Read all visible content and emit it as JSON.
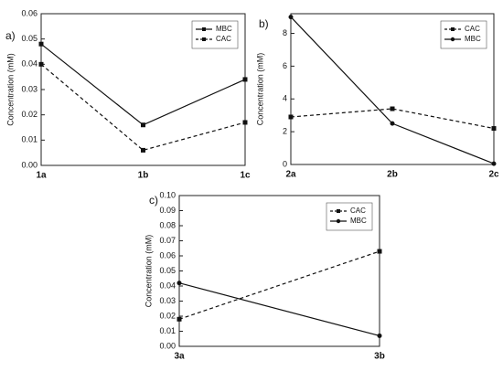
{
  "chart_data": [
    {
      "type": "line",
      "panel_label": "a)",
      "y_label": "Concentration (mM)",
      "categories": [
        "1a",
        "1b",
        "1c"
      ],
      "series": [
        {
          "name": "MBC",
          "color": "#111111",
          "dash": "solid",
          "marker": "square",
          "values": [
            0.048,
            0.016,
            0.034
          ]
        },
        {
          "name": "CAC",
          "color": "#111111",
          "dash": "dashed",
          "marker": "square",
          "values": [
            0.04,
            0.006,
            0.017
          ]
        }
      ],
      "ylim": [
        0,
        0.06
      ],
      "yticks": [
        {
          "value": 0,
          "label": "0.00"
        },
        {
          "value": 0.01,
          "label": "0.01"
        },
        {
          "value": 0.02,
          "label": "0.02"
        },
        {
          "value": 0.03,
          "label": "0.03"
        },
        {
          "value": 0.04,
          "label": "0.04"
        },
        {
          "value": 0.05,
          "label": "0.05"
        },
        {
          "value": 0.06,
          "label": "0.06"
        }
      ],
      "legend": "upper-right"
    },
    {
      "type": "line",
      "panel_label": "b)",
      "y_label": "Concentration (mM)",
      "categories": [
        "2a",
        "2b",
        "2c"
      ],
      "series": [
        {
          "name": "CAC",
          "color": "#111111",
          "dash": "dashed",
          "marker": "square",
          "values": [
            2.9,
            3.4,
            2.2
          ]
        },
        {
          "name": "MBC",
          "color": "#111111",
          "dash": "solid",
          "marker": "circle",
          "values": [
            9.0,
            2.5,
            0.05
          ]
        }
      ],
      "ylim": [
        0,
        9.2
      ],
      "yticks": [
        0,
        2,
        4,
        6,
        8
      ],
      "legend": "upper-right"
    },
    {
      "type": "line",
      "panel_label": "c)",
      "y_label": "Concentration (mM)",
      "categories": [
        "3a",
        "3b"
      ],
      "series": [
        {
          "name": "CAC",
          "color": "#111111",
          "dash": "dashed",
          "marker": "square",
          "values": [
            0.018,
            0.063
          ]
        },
        {
          "name": "MBC",
          "color": "#111111",
          "dash": "solid",
          "marker": "circle",
          "values": [
            0.042,
            0.007
          ]
        }
      ],
      "ylim": [
        0,
        0.1
      ],
      "yticks": [
        {
          "value": 0,
          "label": "0.00"
        },
        {
          "value": 0.01,
          "label": "0.01"
        },
        {
          "value": 0.02,
          "label": "0.02"
        },
        {
          "value": 0.03,
          "label": "0.03"
        },
        {
          "value": 0.04,
          "label": "0.04"
        },
        {
          "value": 0.05,
          "label": "0.05"
        },
        {
          "value": 0.06,
          "label": "0.06"
        },
        {
          "value": 0.07,
          "label": "0.07"
        },
        {
          "value": 0.08,
          "label": "0.08"
        },
        {
          "value": 0.09,
          "label": "0.09"
        },
        {
          "value": 0.1,
          "label": "0.10"
        }
      ],
      "legend": "upper-right"
    }
  ]
}
